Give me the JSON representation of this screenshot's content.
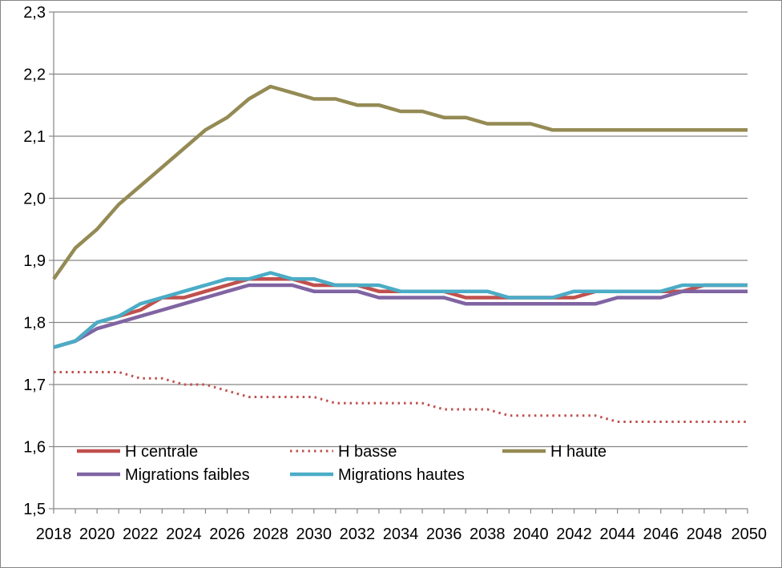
{
  "chart_data": {
    "type": "line",
    "title": "",
    "xlabel": "",
    "ylabel": "",
    "ylim": [
      1.5,
      2.3
    ],
    "y_ticks": [
      "1,5",
      "1,6",
      "1,7",
      "1,8",
      "1,9",
      "2,0",
      "2,1",
      "2,2",
      "2,3"
    ],
    "x_ticks": [
      "2018",
      "2020",
      "2022",
      "2024",
      "2026",
      "2028",
      "2030",
      "2032",
      "2034",
      "2036",
      "2038",
      "2040",
      "2042",
      "2044",
      "2046",
      "2048",
      "2050"
    ],
    "grid": "horizontal",
    "legend_position": "bottom-left inside plot",
    "x": [
      2018,
      2019,
      2020,
      2021,
      2022,
      2023,
      2024,
      2025,
      2026,
      2027,
      2028,
      2029,
      2030,
      2031,
      2032,
      2033,
      2034,
      2035,
      2036,
      2037,
      2038,
      2039,
      2040,
      2041,
      2042,
      2043,
      2044,
      2045,
      2046,
      2047,
      2048,
      2049,
      2050
    ],
    "series": [
      {
        "name": "H centrale",
        "color": "#C0504D",
        "style": "solid",
        "values": [
          1.76,
          1.77,
          1.8,
          1.81,
          1.82,
          1.84,
          1.84,
          1.85,
          1.86,
          1.87,
          1.87,
          1.87,
          1.86,
          1.86,
          1.86,
          1.85,
          1.85,
          1.85,
          1.85,
          1.84,
          1.84,
          1.84,
          1.84,
          1.84,
          1.84,
          1.85,
          1.85,
          1.85,
          1.85,
          1.85,
          1.86,
          1.86,
          1.86
        ]
      },
      {
        "name": "H basse",
        "color": "#C0504D",
        "style": "dotted",
        "values": [
          1.72,
          1.72,
          1.72,
          1.72,
          1.71,
          1.71,
          1.7,
          1.7,
          1.69,
          1.68,
          1.68,
          1.68,
          1.68,
          1.67,
          1.67,
          1.67,
          1.67,
          1.67,
          1.66,
          1.66,
          1.66,
          1.65,
          1.65,
          1.65,
          1.65,
          1.65,
          1.64,
          1.64,
          1.64,
          1.64,
          1.64,
          1.64,
          1.64
        ]
      },
      {
        "name": "H haute",
        "color": "#948A54",
        "style": "solid",
        "values": [
          1.87,
          1.92,
          1.95,
          1.99,
          2.02,
          2.05,
          2.08,
          2.11,
          2.13,
          2.16,
          2.18,
          2.17,
          2.16,
          2.16,
          2.15,
          2.15,
          2.14,
          2.14,
          2.13,
          2.13,
          2.12,
          2.12,
          2.12,
          2.11,
          2.11,
          2.11,
          2.11,
          2.11,
          2.11,
          2.11,
          2.11,
          2.11,
          2.11
        ]
      },
      {
        "name": "Migrations faibles",
        "color": "#8064A2",
        "style": "solid",
        "values": [
          1.76,
          1.77,
          1.79,
          1.8,
          1.81,
          1.82,
          1.83,
          1.84,
          1.85,
          1.86,
          1.86,
          1.86,
          1.85,
          1.85,
          1.85,
          1.84,
          1.84,
          1.84,
          1.84,
          1.83,
          1.83,
          1.83,
          1.83,
          1.83,
          1.83,
          1.83,
          1.84,
          1.84,
          1.84,
          1.85,
          1.85,
          1.85,
          1.85
        ]
      },
      {
        "name": "Migrations hautes",
        "color": "#4BACC6",
        "style": "solid",
        "values": [
          1.76,
          1.77,
          1.8,
          1.81,
          1.83,
          1.84,
          1.85,
          1.86,
          1.87,
          1.87,
          1.88,
          1.87,
          1.87,
          1.86,
          1.86,
          1.86,
          1.85,
          1.85,
          1.85,
          1.85,
          1.85,
          1.84,
          1.84,
          1.84,
          1.85,
          1.85,
          1.85,
          1.85,
          1.85,
          1.86,
          1.86,
          1.86,
          1.86
        ]
      }
    ]
  }
}
